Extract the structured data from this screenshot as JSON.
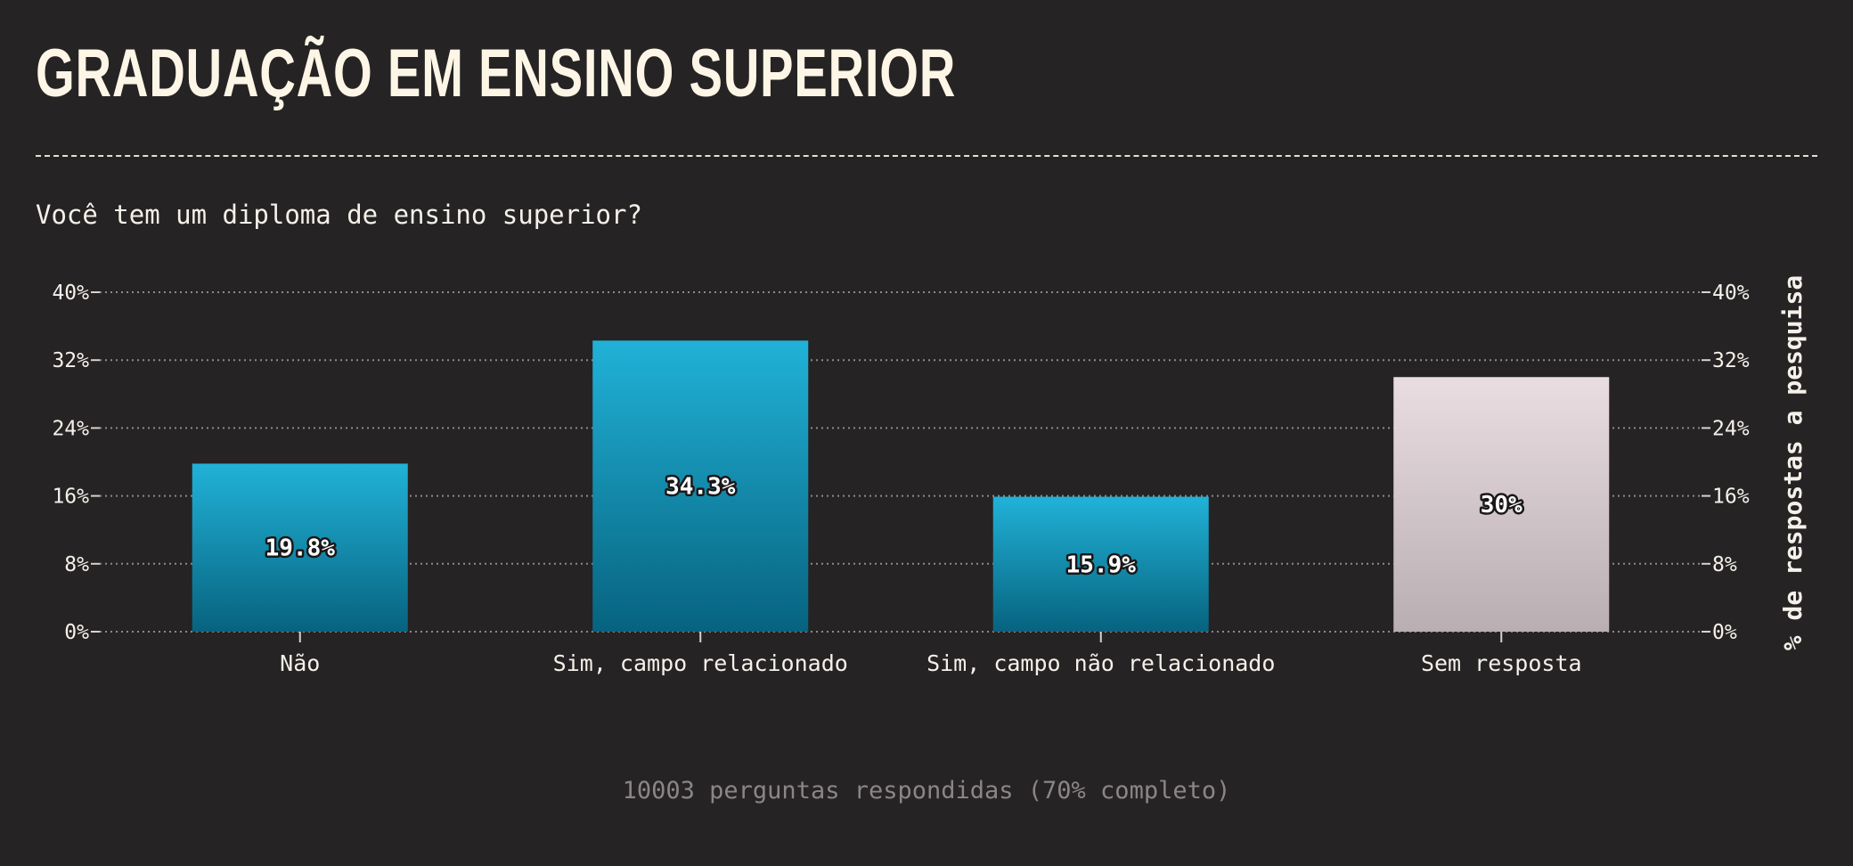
{
  "title": "GRADUAÇÃO EM ENSINO SUPERIOR",
  "question": "Você tem um diploma de ensino superior?",
  "footer": "10003 perguntas respondidas (70% completo)",
  "colors": {
    "background": "#262324",
    "bar_top": "#21b2d8",
    "bar_bottom": "#07637f",
    "no_answer_top": "#e9dde1",
    "no_answer_bottom": "#b9aeb1"
  },
  "chart_data": {
    "type": "bar",
    "categories": [
      "Não",
      "Sim, campo relacionado",
      "Sim, campo não relacionado",
      "Sem resposta"
    ],
    "values": [
      19.8,
      34.3,
      15.9,
      30
    ],
    "value_labels": [
      "19.8%",
      "34.3%",
      "15.9%",
      "30%"
    ],
    "ylabel": "% de respostas a pesquisa",
    "ylim": [
      0,
      40
    ],
    "yticks": [
      0,
      8,
      16,
      24,
      32,
      40
    ],
    "ytick_labels": [
      "0%",
      "8%",
      "16%",
      "24%",
      "32%",
      "40%"
    ],
    "grid": true,
    "legend": "none"
  }
}
